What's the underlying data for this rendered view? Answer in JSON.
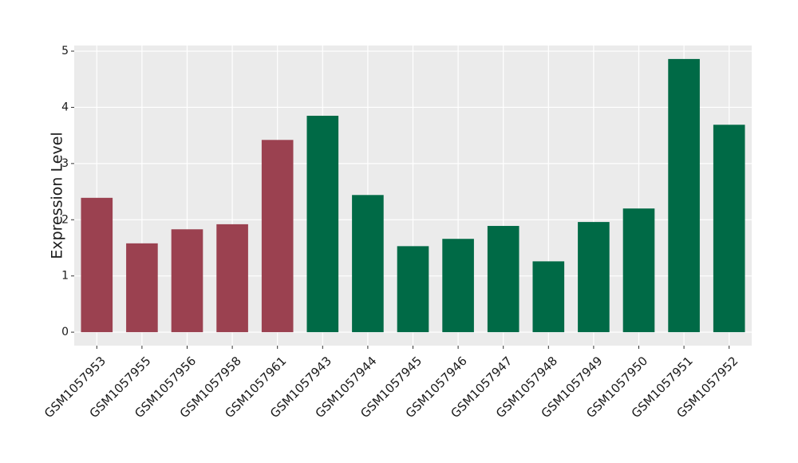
{
  "chart_data": {
    "type": "bar",
    "y_label": "Expression Level",
    "categories": [
      "GSM1057953",
      "GSM1057955",
      "GSM1057956",
      "GSM1057958",
      "GSM1057961",
      "GSM1057943",
      "GSM1057944",
      "GSM1057945",
      "GSM1057946",
      "GSM1057947",
      "GSM1057948",
      "GSM1057949",
      "GSM1057950",
      "GSM1057951",
      "GSM1057952"
    ],
    "values": [
      2.39,
      1.58,
      1.83,
      1.92,
      3.42,
      3.85,
      2.44,
      1.53,
      1.66,
      1.89,
      1.26,
      1.96,
      2.2,
      4.86,
      3.69
    ],
    "colors": [
      "#9b4150",
      "#9b4150",
      "#9b4150",
      "#9b4150",
      "#9b4150",
      "#006a46",
      "#006a46",
      "#006a46",
      "#006a46",
      "#006a46",
      "#006a46",
      "#006a46",
      "#006a46",
      "#006a46",
      "#006a46"
    ],
    "ylim": [
      -0.24,
      5.1
    ],
    "yticks": [
      0,
      1,
      2,
      3,
      4,
      5
    ],
    "grid": true
  }
}
